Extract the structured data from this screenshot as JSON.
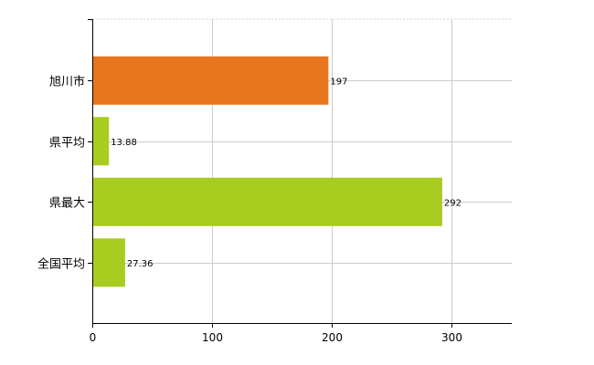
{
  "chart_data": {
    "type": "bar",
    "orientation": "horizontal",
    "categories": [
      "旭川市",
      "県平均",
      "県最大",
      "全国平均"
    ],
    "values": [
      197,
      13.88,
      292,
      27.36
    ],
    "data_labels": [
      "197",
      "13.88",
      "292",
      "27.36"
    ],
    "highlight_index": 0,
    "colors": {
      "highlight": "#e8761e",
      "default": "#a8cc1f",
      "grid": "#cccccc",
      "axis": "#000000"
    },
    "xlim": [
      0,
      350
    ],
    "xticks": [
      0,
      100,
      200,
      300
    ],
    "xtick_labels": [
      "0",
      "100",
      "200",
      "300"
    ],
    "title": "",
    "xlabel": "",
    "ylabel": "",
    "grid": true,
    "legend": "none"
  }
}
